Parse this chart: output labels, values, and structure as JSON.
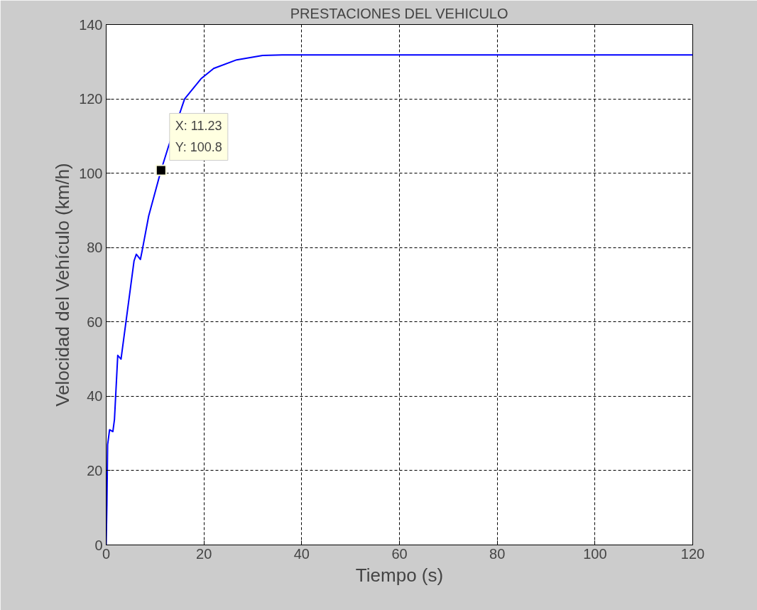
{
  "chart_data": {
    "type": "line",
    "title": "PRESTACIONES DEL VEHICULO",
    "xlabel": "Tiempo (s)",
    "ylabel": "Velocidad del Vehículo (km/h)",
    "x": [
      0,
      0.15,
      0.3,
      0.7,
      1.37,
      1.7,
      2.37,
      3.04,
      5.7,
      6.17,
      7.0,
      7.37,
      8.7,
      11.23,
      12.7,
      16.05,
      19.4,
      22,
      26.7,
      32,
      36,
      120
    ],
    "series": [
      {
        "color": "#0000ff",
        "values": [
          0,
          10.7,
          27,
          31,
          30.5,
          33.8,
          51,
          50,
          76.4,
          78.2,
          76.8,
          79.2,
          88.5,
          100.8,
          107,
          120,
          125.4,
          128.2,
          130.5,
          131.7,
          131.8,
          131.8
        ]
      }
    ],
    "xlim": [
      0,
      120
    ],
    "ylim": [
      0,
      140
    ],
    "xticks": [
      0,
      20,
      40,
      60,
      80,
      100,
      120
    ],
    "yticks": [
      0,
      20,
      40,
      60,
      80,
      100,
      120,
      140
    ],
    "grid": true,
    "line_style": "solid",
    "annotations": [
      {
        "text": "X: 11.23\nY: 100.8",
        "x": 11.23,
        "y": 100.8
      }
    ]
  }
}
